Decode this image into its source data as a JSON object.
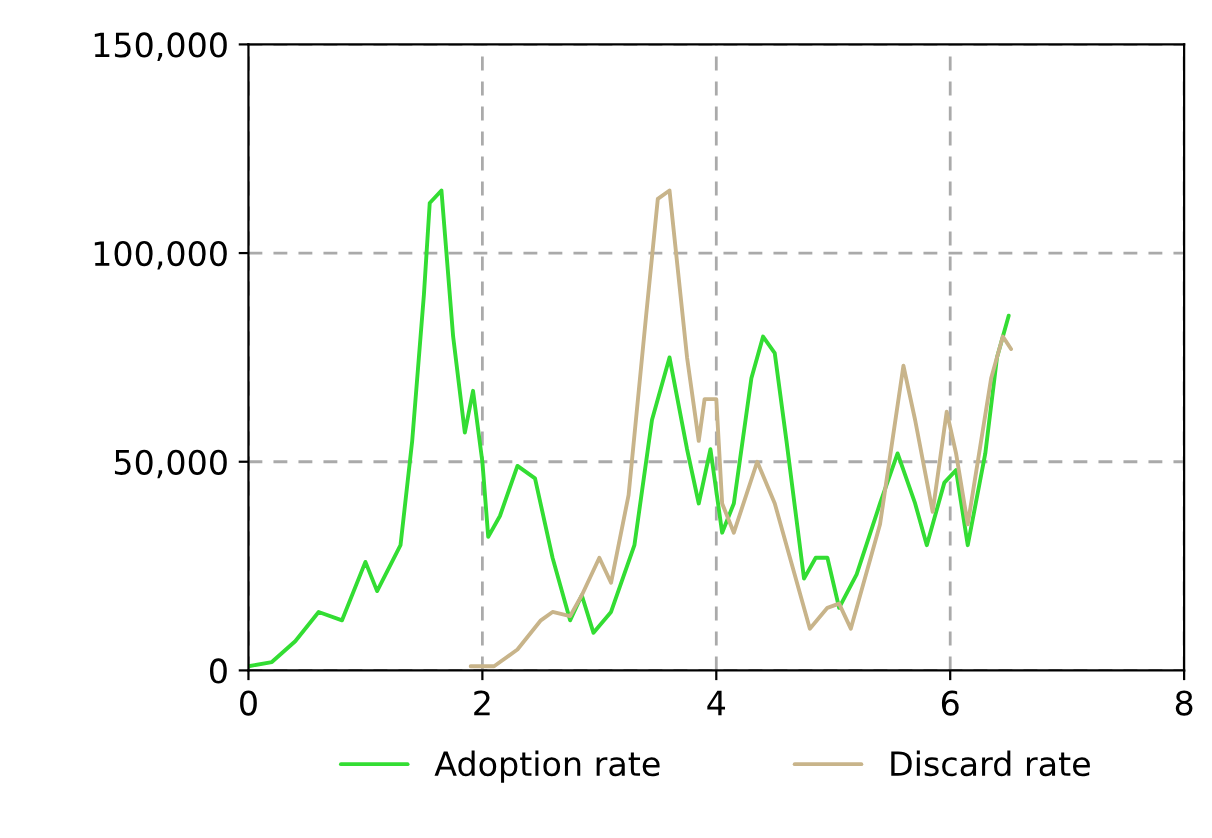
{
  "chart_data": {
    "type": "line",
    "xlim": [
      0,
      8
    ],
    "xticks": [
      0,
      2,
      4,
      6,
      8
    ],
    "ylim": [
      0,
      150000
    ],
    "yticks": [
      {
        "value": 0,
        "label": "0"
      },
      {
        "value": 50000,
        "label": "50,000"
      },
      {
        "value": 100000,
        "label": "100,000"
      },
      {
        "value": 150000,
        "label": "150,000"
      }
    ],
    "grid": true,
    "legend": "bottom",
    "line_style": "solid",
    "series": [
      {
        "name": "Adoption rate",
        "color": "#33dd33",
        "x": [
          0,
          0.2,
          0.4,
          0.6,
          0.8,
          1.0,
          1.1,
          1.3,
          1.4,
          1.5,
          1.55,
          1.65,
          1.75,
          1.85,
          1.92,
          2.0,
          2.05,
          2.15,
          2.3,
          2.45,
          2.6,
          2.75,
          2.85,
          2.95,
          3.1,
          3.3,
          3.45,
          3.6,
          3.75,
          3.85,
          3.95,
          4.05,
          4.15,
          4.3,
          4.4,
          4.5,
          4.6,
          4.75,
          4.85,
          4.95,
          5.05,
          5.2,
          5.4,
          5.55,
          5.7,
          5.8,
          5.95,
          6.05,
          6.15,
          6.3,
          6.4,
          6.5
        ],
        "values": [
          1000,
          2000,
          7000,
          14000,
          12000,
          26000,
          19000,
          30000,
          55000,
          90000,
          112000,
          115000,
          80000,
          57000,
          67000,
          50000,
          32000,
          37000,
          49000,
          46000,
          27000,
          12000,
          18000,
          9000,
          14000,
          30000,
          60000,
          75000,
          53000,
          40000,
          53000,
          33000,
          40000,
          70000,
          80000,
          76000,
          55000,
          22000,
          27000,
          27000,
          15000,
          23000,
          40000,
          52000,
          40000,
          30000,
          45000,
          48000,
          30000,
          52000,
          75000,
          85000
        ]
      },
      {
        "name": "Discard rate",
        "color": "#c8b48a",
        "x": [
          1.9,
          2.1,
          2.3,
          2.5,
          2.6,
          2.75,
          2.85,
          3.0,
          3.1,
          3.25,
          3.4,
          3.5,
          3.6,
          3.75,
          3.85,
          3.9,
          4.0,
          4.05,
          4.15,
          4.35,
          4.5,
          4.7,
          4.8,
          4.95,
          5.05,
          5.15,
          5.4,
          5.6,
          5.7,
          5.85,
          5.97,
          6.05,
          6.15,
          6.35,
          6.45,
          6.52
        ],
        "values": [
          1000,
          1000,
          5000,
          12000,
          14000,
          13000,
          18000,
          27000,
          21000,
          42000,
          85000,
          113000,
          115000,
          75000,
          55000,
          65000,
          65000,
          40000,
          33000,
          50000,
          40000,
          20000,
          10000,
          15000,
          16000,
          10000,
          35000,
          73000,
          60000,
          38000,
          62000,
          52000,
          35000,
          70000,
          80000,
          77000
        ]
      }
    ]
  }
}
